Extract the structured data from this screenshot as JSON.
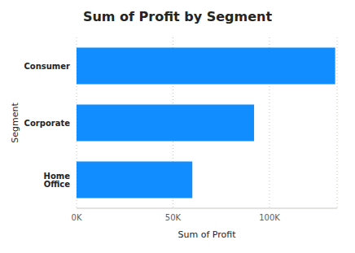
{
  "chart_data": {
    "type": "bar",
    "title": "Sum of Profit by Segment",
    "orientation": "horizontal",
    "categories": [
      "Consumer",
      "Corporate",
      "Home Office"
    ],
    "values": [
      134000,
      92000,
      60000
    ],
    "color": "#118dff",
    "x_label": "Sum of Profit",
    "y_label": "Segment",
    "xlim": [
      0,
      135000
    ],
    "xticks": [
      {
        "value": 0,
        "label": "0K"
      },
      {
        "value": 50000,
        "label": "50K"
      },
      {
        "value": 100000,
        "label": "100K"
      }
    ],
    "grid": true
  }
}
